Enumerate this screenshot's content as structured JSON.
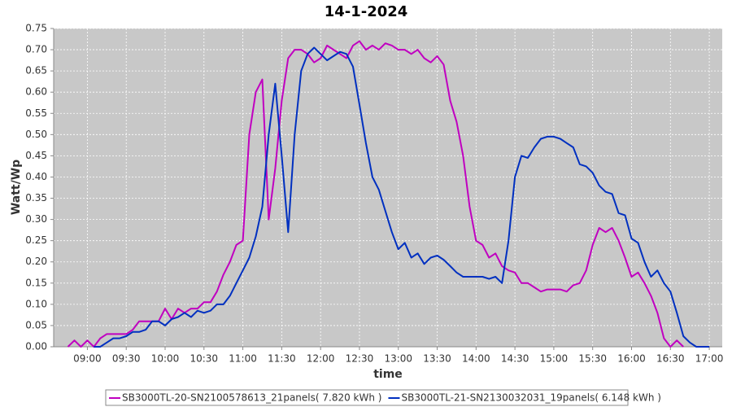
{
  "chart_data": {
    "type": "line",
    "title": "14-1-2024",
    "x_label": "time",
    "y_label": "Watt/Wp",
    "x": [
      "08:45",
      "08:50",
      "08:55",
      "09:00",
      "09:05",
      "09:10",
      "09:15",
      "09:20",
      "09:25",
      "09:30",
      "09:35",
      "09:40",
      "09:45",
      "09:50",
      "09:55",
      "10:00",
      "10:05",
      "10:10",
      "10:15",
      "10:20",
      "10:25",
      "10:30",
      "10:35",
      "10:40",
      "10:45",
      "10:50",
      "10:55",
      "11:00",
      "11:05",
      "11:10",
      "11:15",
      "11:20",
      "11:25",
      "11:30",
      "11:35",
      "11:40",
      "11:45",
      "11:50",
      "11:55",
      "12:00",
      "12:05",
      "12:10",
      "12:15",
      "12:20",
      "12:25",
      "12:30",
      "12:35",
      "12:40",
      "12:45",
      "12:50",
      "12:55",
      "13:00",
      "13:05",
      "13:10",
      "13:15",
      "13:20",
      "13:25",
      "13:30",
      "13:35",
      "13:40",
      "13:45",
      "13:50",
      "13:55",
      "14:00",
      "14:05",
      "14:10",
      "14:15",
      "14:20",
      "14:25",
      "14:30",
      "14:35",
      "14:40",
      "14:45",
      "14:50",
      "14:55",
      "15:00",
      "15:05",
      "15:10",
      "15:15",
      "15:20",
      "15:25",
      "15:30",
      "15:35",
      "15:40",
      "15:45",
      "15:50",
      "15:55",
      "16:00",
      "16:05",
      "16:10",
      "16:15",
      "16:20",
      "16:25",
      "16:30",
      "16:35",
      "16:40",
      "16:45",
      "16:50",
      "16:55",
      "17:00"
    ],
    "series": [
      {
        "name": "SB3000TL-20-SN2100578613_21panels( 7.820 kWh )",
        "color": "#c000c0",
        "values": [
          0,
          0.015,
          0,
          0.015,
          0,
          0.02,
          0.03,
          0.03,
          0.03,
          0.03,
          0.04,
          0.06,
          0.06,
          0.06,
          0.06,
          0.09,
          0.065,
          0.09,
          0.08,
          0.09,
          0.09,
          0.105,
          0.105,
          0.13,
          0.17,
          0.2,
          0.24,
          0.25,
          0.5,
          0.6,
          0.63,
          0.3,
          0.42,
          0.58,
          0.68,
          0.7,
          0.7,
          0.69,
          0.67,
          0.68,
          0.71,
          0.7,
          0.69,
          0.68,
          0.71,
          0.72,
          0.7,
          0.71,
          0.7,
          0.715,
          0.71,
          0.7,
          0.7,
          0.69,
          0.7,
          0.68,
          0.67,
          0.685,
          0.665,
          0.58,
          0.53,
          0.45,
          0.33,
          0.25,
          0.24,
          0.21,
          0.22,
          0.19,
          0.18,
          0.175,
          0.15,
          0.15,
          0.14,
          0.13,
          0.135,
          0.135,
          0.135,
          0.13,
          0.145,
          0.15,
          0.18,
          0.24,
          0.28,
          0.27,
          0.28,
          0.25,
          0.21,
          0.165,
          0.175,
          0.15,
          0.12,
          0.08,
          0.02,
          0,
          0.015,
          0,
          null,
          null,
          null,
          null
        ]
      },
      {
        "name": "SB3000TL-21-SN2130032031_19panels( 6.148 kWh )",
        "color": "#0030c0",
        "values": [
          null,
          null,
          null,
          null,
          0,
          0,
          0.01,
          0.02,
          0.02,
          0.025,
          0.035,
          0.035,
          0.04,
          0.06,
          0.06,
          0.05,
          0.065,
          0.07,
          0.08,
          0.07,
          0.085,
          0.08,
          0.085,
          0.1,
          0.1,
          0.12,
          0.15,
          0.18,
          0.21,
          0.26,
          0.33,
          0.5,
          0.62,
          0.45,
          0.27,
          0.5,
          0.65,
          0.69,
          0.705,
          0.69,
          0.675,
          0.685,
          0.695,
          0.69,
          0.66,
          0.57,
          0.48,
          0.4,
          0.37,
          0.32,
          0.27,
          0.23,
          0.245,
          0.21,
          0.22,
          0.195,
          0.21,
          0.215,
          0.205,
          0.19,
          0.175,
          0.165,
          0.165,
          0.165,
          0.165,
          0.16,
          0.165,
          0.15,
          0.25,
          0.4,
          0.45,
          0.445,
          0.47,
          0.49,
          0.495,
          0.495,
          0.49,
          0.48,
          0.47,
          0.43,
          0.425,
          0.41,
          0.38,
          0.365,
          0.36,
          0.315,
          0.31,
          0.255,
          0.245,
          0.2,
          0.165,
          0.18,
          0.15,
          0.13,
          0.08,
          0.025,
          0.01,
          0,
          0,
          0
        ]
      }
    ],
    "xlim": [
      "08:34",
      "17:10"
    ],
    "xticks": [
      "09:00",
      "09:30",
      "10:00",
      "10:30",
      "11:00",
      "11:30",
      "12:00",
      "12:30",
      "13:00",
      "13:30",
      "14:00",
      "14:30",
      "15:00",
      "15:30",
      "16:00",
      "16:30",
      "17:00"
    ],
    "ylim": [
      0,
      0.75
    ],
    "yticks": [
      {
        "value": 0,
        "label": "0.00"
      },
      {
        "value": 0.05,
        "label": "0.05"
      },
      {
        "value": 0.1,
        "label": "0.10"
      },
      {
        "value": 0.15,
        "label": "0.15"
      },
      {
        "value": 0.2,
        "label": "0.20"
      },
      {
        "value": 0.25,
        "label": "0.25"
      },
      {
        "value": 0.3,
        "label": "0.30"
      },
      {
        "value": 0.35,
        "label": "0.35"
      },
      {
        "value": 0.4,
        "label": "0.40"
      },
      {
        "value": 0.45,
        "label": "0.45"
      },
      {
        "value": 0.5,
        "label": "0.50"
      },
      {
        "value": 0.55,
        "label": "0.55"
      },
      {
        "value": 0.6,
        "label": "0.60"
      },
      {
        "value": 0.65,
        "label": "0.65"
      },
      {
        "value": 0.7,
        "label": "0.70"
      },
      {
        "value": 0.75,
        "label": "0.75"
      }
    ],
    "grid": true,
    "legend": "bottom"
  }
}
